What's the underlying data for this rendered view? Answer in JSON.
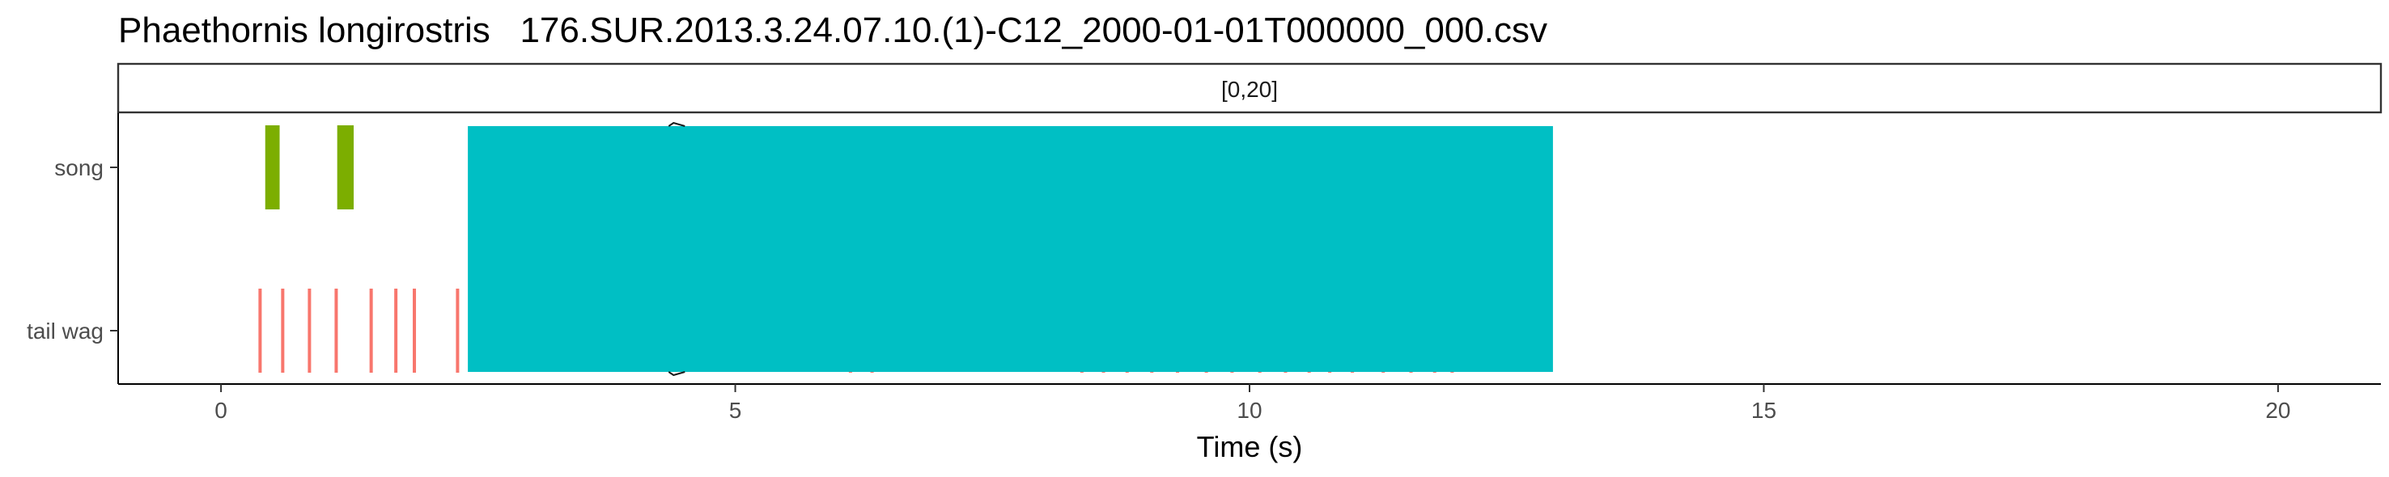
{
  "chart_data": {
    "type": "event-raster",
    "title": "Phaethornis longirostris   176.SUR.2013.3.24.07.10.(1)-C12_2000-01-01T000000_000.csv",
    "facet_label": "[0,20]",
    "xlabel": "Time (s)",
    "ylabel": "",
    "xlim": [
      -1,
      21
    ],
    "x_ticks": [
      0,
      5,
      10,
      15,
      20
    ],
    "categories": [
      "song",
      "tail wag"
    ],
    "grid": false,
    "legend": "none",
    "colors": {
      "song": "#7CAE00",
      "tail wag": "#F8766D",
      "overlay": "#00BFC4"
    },
    "series": [
      {
        "category": "song",
        "events": [
          [
            0.43,
            0.57
          ],
          [
            1.13,
            1.29
          ]
        ]
      },
      {
        "category": "tail wag",
        "events": [
          0.38,
          0.6,
          0.86,
          1.12,
          1.46,
          1.7,
          1.88,
          2.3,
          6.12,
          6.33,
          8.37,
          8.58,
          8.81,
          9.05,
          9.3,
          9.58,
          9.83,
          10.1,
          10.35,
          10.58,
          10.78,
          11.0,
          11.3,
          11.57,
          11.8,
          11.97
        ]
      }
    ],
    "overlay": {
      "x": [
        2.4,
        12.95
      ],
      "categories": [
        "song",
        "tail wag"
      ]
    }
  }
}
